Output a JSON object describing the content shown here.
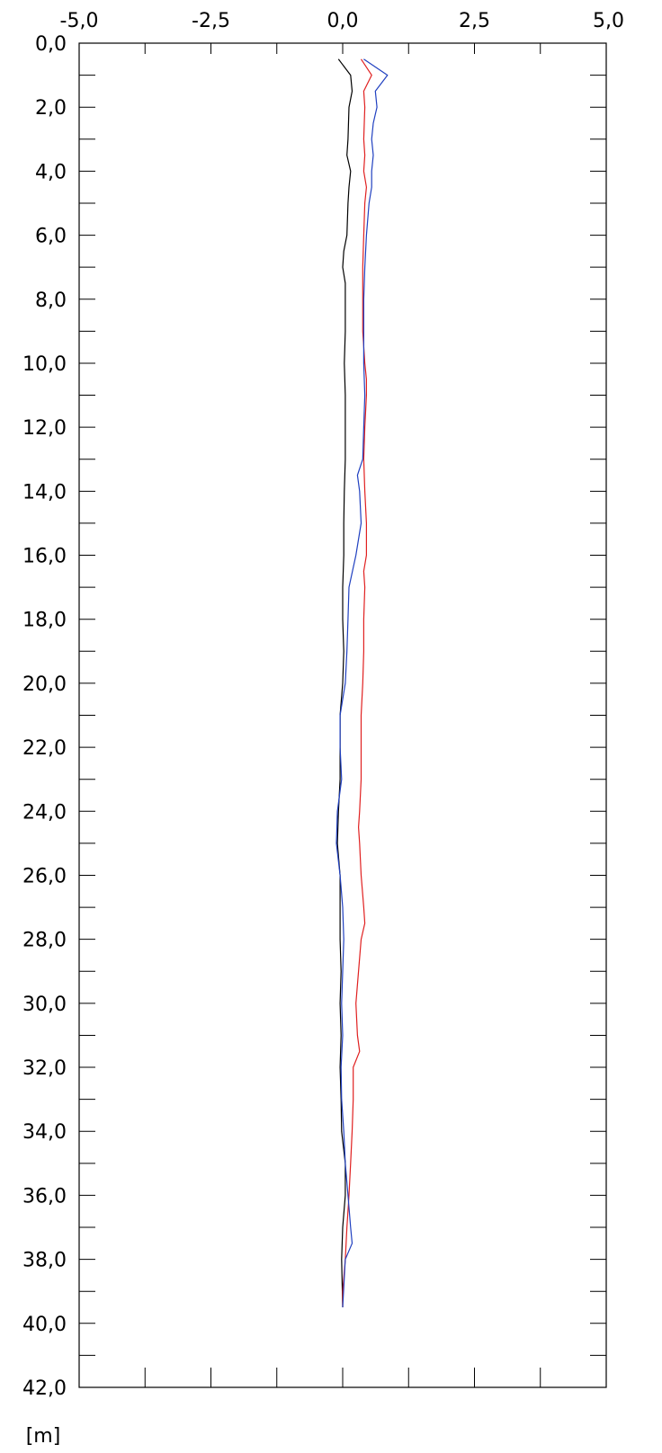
{
  "chart_data": {
    "type": "line",
    "orientation": "depth-profile",
    "xlim": [
      -5.0,
      5.0
    ],
    "ylim": [
      0.0,
      42.0
    ],
    "y_inverted": true,
    "x_tick_labels": [
      "-5,0",
      "-2,5",
      "0,0",
      "2,5",
      "5,0"
    ],
    "x_tick_values": [
      -5.0,
      -2.5,
      0.0,
      2.5,
      5.0
    ],
    "y_tick_labels": [
      "0,0",
      "2,0",
      "4,0",
      "6,0",
      "8,0",
      "10,0",
      "12,0",
      "14,0",
      "16,0",
      "18,0",
      "20,0",
      "22,0",
      "24,0",
      "26,0",
      "28,0",
      "30,0",
      "32,0",
      "34,0",
      "36,0",
      "38,0",
      "40,0",
      "42,0"
    ],
    "y_tick_values": [
      0,
      2,
      4,
      6,
      8,
      10,
      12,
      14,
      16,
      18,
      20,
      22,
      24,
      26,
      28,
      30,
      32,
      34,
      36,
      38,
      40,
      42
    ],
    "y_unit": "[m]",
    "grid": false,
    "legend": "none",
    "series": [
      {
        "color": "#000000",
        "points": [
          [
            -0.08,
            0.5
          ],
          [
            0.15,
            1.0
          ],
          [
            0.18,
            1.5
          ],
          [
            0.12,
            2.0
          ],
          [
            0.1,
            3.0
          ],
          [
            0.08,
            3.5
          ],
          [
            0.15,
            4.0
          ],
          [
            0.12,
            4.5
          ],
          [
            0.1,
            5.0
          ],
          [
            0.08,
            6.0
          ],
          [
            0.02,
            6.5
          ],
          [
            0.0,
            7.0
          ],
          [
            0.05,
            7.5
          ],
          [
            0.05,
            8.0
          ],
          [
            0.05,
            9.0
          ],
          [
            0.03,
            10.0
          ],
          [
            0.05,
            11.0
          ],
          [
            0.05,
            12.0
          ],
          [
            0.05,
            13.0
          ],
          [
            0.03,
            14.0
          ],
          [
            0.02,
            15.0
          ],
          [
            0.02,
            16.0
          ],
          [
            0.0,
            17.0
          ],
          [
            0.0,
            18.0
          ],
          [
            0.02,
            19.0
          ],
          [
            0.0,
            20.0
          ],
          [
            -0.05,
            21.0
          ],
          [
            -0.05,
            22.0
          ],
          [
            -0.05,
            23.0
          ],
          [
            -0.08,
            24.0
          ],
          [
            -0.1,
            25.0
          ],
          [
            -0.05,
            26.0
          ],
          [
            -0.05,
            27.0
          ],
          [
            -0.05,
            28.0
          ],
          [
            -0.03,
            29.0
          ],
          [
            -0.05,
            30.0
          ],
          [
            -0.03,
            31.0
          ],
          [
            -0.05,
            32.0
          ],
          [
            -0.03,
            33.0
          ],
          [
            -0.02,
            34.0
          ],
          [
            0.05,
            35.0
          ],
          [
            0.05,
            36.0
          ],
          [
            0.0,
            37.0
          ],
          [
            -0.02,
            38.0
          ],
          [
            0.0,
            39.5
          ]
        ]
      },
      {
        "color": "#e02020",
        "points": [
          [
            0.35,
            0.5
          ],
          [
            0.55,
            1.0
          ],
          [
            0.4,
            1.5
          ],
          [
            0.42,
            2.0
          ],
          [
            0.4,
            3.0
          ],
          [
            0.42,
            3.5
          ],
          [
            0.4,
            4.0
          ],
          [
            0.45,
            4.5
          ],
          [
            0.42,
            5.0
          ],
          [
            0.4,
            6.0
          ],
          [
            0.38,
            7.0
          ],
          [
            0.38,
            8.0
          ],
          [
            0.38,
            9.0
          ],
          [
            0.42,
            10.0
          ],
          [
            0.45,
            10.5
          ],
          [
            0.45,
            11.0
          ],
          [
            0.42,
            12.0
          ],
          [
            0.4,
            13.0
          ],
          [
            0.42,
            14.0
          ],
          [
            0.45,
            15.0
          ],
          [
            0.45,
            16.0
          ],
          [
            0.4,
            16.5
          ],
          [
            0.42,
            17.0
          ],
          [
            0.4,
            18.0
          ],
          [
            0.4,
            19.0
          ],
          [
            0.38,
            20.0
          ],
          [
            0.35,
            21.0
          ],
          [
            0.35,
            22.0
          ],
          [
            0.35,
            23.0
          ],
          [
            0.32,
            24.0
          ],
          [
            0.3,
            24.5
          ],
          [
            0.32,
            25.0
          ],
          [
            0.35,
            26.0
          ],
          [
            0.4,
            27.0
          ],
          [
            0.42,
            27.5
          ],
          [
            0.35,
            28.0
          ],
          [
            0.3,
            29.0
          ],
          [
            0.25,
            30.0
          ],
          [
            0.28,
            31.0
          ],
          [
            0.32,
            31.5
          ],
          [
            0.2,
            32.0
          ],
          [
            0.2,
            33.0
          ],
          [
            0.18,
            34.0
          ],
          [
            0.15,
            35.0
          ],
          [
            0.12,
            36.0
          ],
          [
            0.08,
            37.0
          ],
          [
            0.05,
            38.0
          ],
          [
            0.0,
            39.0
          ],
          [
            0.0,
            39.5
          ]
        ]
      },
      {
        "color": "#2040c0",
        "points": [
          [
            0.4,
            0.5
          ],
          [
            0.85,
            1.0
          ],
          [
            0.62,
            1.5
          ],
          [
            0.65,
            2.0
          ],
          [
            0.58,
            2.5
          ],
          [
            0.55,
            3.0
          ],
          [
            0.58,
            3.5
          ],
          [
            0.55,
            4.0
          ],
          [
            0.55,
            4.5
          ],
          [
            0.5,
            5.0
          ],
          [
            0.45,
            6.0
          ],
          [
            0.42,
            7.0
          ],
          [
            0.4,
            8.0
          ],
          [
            0.4,
            9.0
          ],
          [
            0.4,
            10.0
          ],
          [
            0.42,
            11.0
          ],
          [
            0.4,
            12.0
          ],
          [
            0.38,
            13.0
          ],
          [
            0.28,
            13.5
          ],
          [
            0.32,
            14.0
          ],
          [
            0.35,
            15.0
          ],
          [
            0.25,
            16.0
          ],
          [
            0.12,
            17.0
          ],
          [
            0.1,
            18.0
          ],
          [
            0.08,
            19.0
          ],
          [
            0.05,
            20.0
          ],
          [
            -0.05,
            21.0
          ],
          [
            -0.05,
            22.0
          ],
          [
            -0.02,
            23.0
          ],
          [
            -0.1,
            24.0
          ],
          [
            -0.12,
            25.0
          ],
          [
            -0.05,
            26.0
          ],
          [
            0.0,
            27.0
          ],
          [
            0.02,
            28.0
          ],
          [
            0.0,
            29.0
          ],
          [
            -0.02,
            30.0
          ],
          [
            0.0,
            31.0
          ],
          [
            -0.03,
            32.0
          ],
          [
            -0.02,
            33.0
          ],
          [
            0.02,
            34.0
          ],
          [
            0.05,
            35.0
          ],
          [
            0.1,
            36.0
          ],
          [
            0.15,
            37.0
          ],
          [
            0.18,
            37.5
          ],
          [
            0.05,
            38.0
          ],
          [
            0.0,
            39.5
          ]
        ]
      }
    ]
  }
}
